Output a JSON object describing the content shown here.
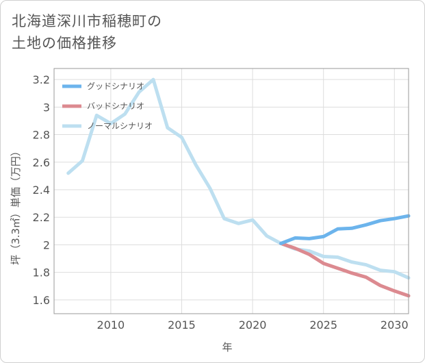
{
  "title": "北海道深川市稲穂町の\n土地の価格推移",
  "chart_data": {
    "type": "line",
    "xlabel": "年",
    "ylabel": "坪（3.3㎡）単価（万円）",
    "xlim": [
      2006,
      2031
    ],
    "ylim": [
      1.5,
      3.28
    ],
    "xticks": [
      2010,
      2015,
      2020,
      2025,
      2030
    ],
    "yticks": [
      1.6,
      1.8,
      2,
      2.2,
      2.4,
      2.6,
      2.8,
      3,
      3.2
    ],
    "grid": true,
    "legend_position": "top-left",
    "series": [
      {
        "name": "グッドシナリオ",
        "color": "#6cb4ec",
        "x": [
          2022,
          2023,
          2024,
          2025,
          2026,
          2027,
          2028,
          2029,
          2030,
          2031
        ],
        "values": [
          2.01,
          2.05,
          2.045,
          2.06,
          2.115,
          2.12,
          2.145,
          2.175,
          2.19,
          2.21
        ]
      },
      {
        "name": "バッドシナリオ",
        "color": "#dc8a90",
        "x": [
          2022,
          2023,
          2024,
          2025,
          2026,
          2027,
          2028,
          2029,
          2030,
          2031
        ],
        "values": [
          2.01,
          1.975,
          1.93,
          1.865,
          1.83,
          1.795,
          1.765,
          1.705,
          1.665,
          1.63
        ]
      },
      {
        "name": "ノーマルシナリオ",
        "color": "#bddff0",
        "x": [
          2007,
          2008,
          2009,
          2010,
          2011,
          2012,
          2013,
          2014,
          2015,
          2016,
          2017,
          2018,
          2019,
          2020,
          2021,
          2022,
          2023,
          2024,
          2025,
          2026,
          2027,
          2028,
          2029,
          2030,
          2031
        ],
        "values": [
          2.52,
          2.61,
          2.94,
          2.88,
          2.95,
          3.11,
          3.2,
          2.85,
          2.78,
          2.58,
          2.41,
          2.19,
          2.155,
          2.18,
          2.065,
          2.01,
          1.97,
          1.955,
          1.915,
          1.91,
          1.875,
          1.855,
          1.815,
          1.805,
          1.76
        ]
      }
    ]
  }
}
